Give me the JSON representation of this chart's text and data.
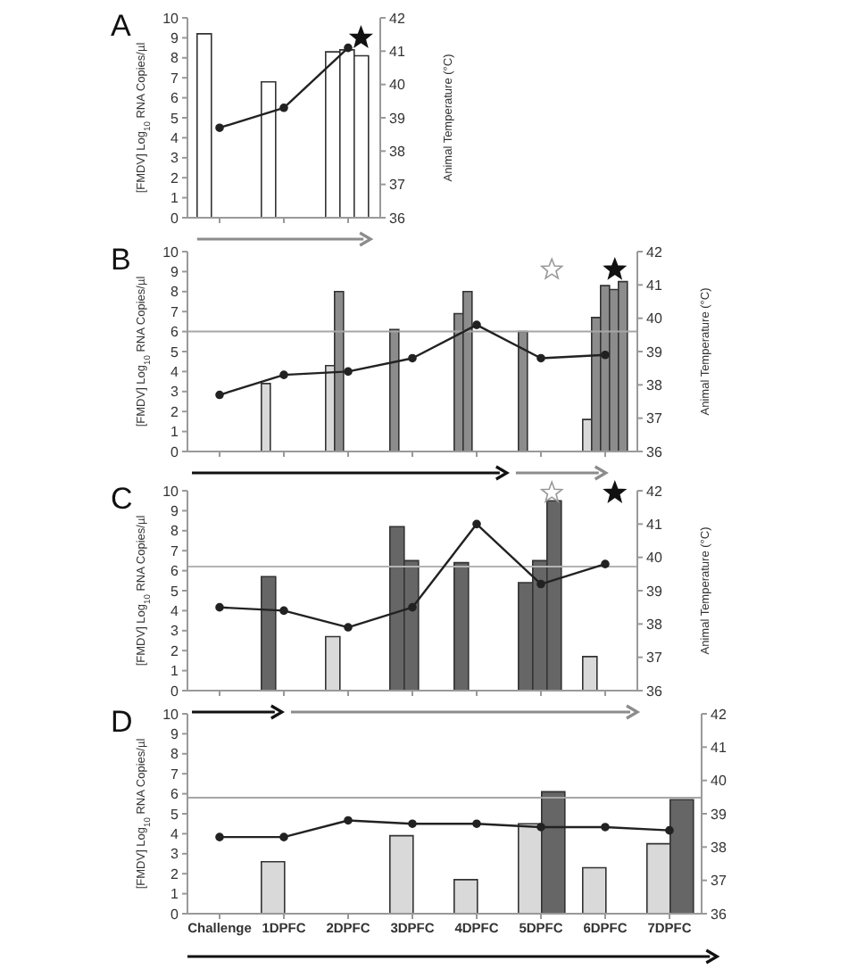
{
  "chart_data": [
    {
      "type": "bar",
      "title": "A",
      "ylabel": "[FMDV] Log$_{10}$ RNA Copies/µl",
      "y2label": "Animal Temperature (°C)",
      "categories": [
        null,
        null,
        null
      ],
      "ylim": [
        0,
        10
      ],
      "yticks": [
        0,
        1,
        2,
        3,
        4,
        5,
        6,
        7,
        8,
        9,
        10
      ],
      "y2lim": [
        36,
        42
      ],
      "y2ticks": [
        36,
        37,
        38,
        39,
        40,
        41,
        42
      ],
      "marker": "circle",
      "series": [
        {
          "color": "#ffffff",
          "values": [
            9.2,
            6.8,
            8.3
          ]
        },
        {
          "color": "#ffffff",
          "values": [
            null,
            null,
            8.4
          ]
        },
        {
          "color": "#ffffff",
          "values": [
            null,
            null,
            8.1
          ]
        },
        {
          "type": "line",
          "axis": "y2",
          "color": "#222222",
          "values": [
            38.7,
            39.3,
            41.1
          ]
        }
      ]
    },
    {
      "type": "bar",
      "title": "B",
      "ylabel": "[FMDV] Log$_{10}$ RNA Copies/µl",
      "y2label": "Animal Temperature (°C)",
      "categories": [
        null,
        null,
        null,
        null,
        null,
        null,
        null
      ],
      "ylim": [
        0,
        10
      ],
      "yticks": [
        0,
        1,
        2,
        3,
        4,
        5,
        6,
        7,
        8,
        9,
        10
      ],
      "y2lim": [
        36,
        42
      ],
      "y2ticks": [
        36,
        37,
        38,
        39,
        40,
        41,
        42
      ],
      "marker": "circle",
      "ref_lines": [
        {
          "axis": "y",
          "value": 6,
          "color": "#a6a6a6"
        }
      ],
      "series": [
        {
          "color": "#8c8c8c",
          "colors": [
            "#d9d9d9",
            "#d9d9d9",
            "#d9d9d9",
            "#8c8c8c",
            "#8c8c8c",
            "#8c8c8c",
            "#d9d9d9"
          ],
          "values": [
            null,
            3.4,
            4.3,
            6.1,
            6.9,
            6.0,
            1.6
          ]
        },
        {
          "color": "#8c8c8c",
          "values": [
            null,
            null,
            8.0,
            null,
            8.0,
            null,
            6.7
          ]
        },
        {
          "color": "#8c8c8c",
          "values": [
            null,
            null,
            null,
            null,
            null,
            null,
            8.3
          ]
        },
        {
          "color": "#8c8c8c",
          "values": [
            null,
            null,
            null,
            null,
            null,
            null,
            8.1
          ]
        },
        {
          "color": "#8c8c8c",
          "values": [
            null,
            null,
            null,
            null,
            null,
            null,
            8.5
          ]
        },
        {
          "type": "line",
          "axis": "y2",
          "color": "#222222",
          "values": [
            37.7,
            38.3,
            38.4,
            38.8,
            39.8,
            38.8,
            38.9
          ]
        }
      ]
    },
    {
      "type": "bar",
      "title": "C",
      "ylabel": "[FMDV] Log$_{10}$ RNA Copies/µl",
      "y2label": "Animal Temperature (°C)",
      "categories": [
        null,
        null,
        null,
        null,
        null,
        null,
        null
      ],
      "ylim": [
        0,
        10
      ],
      "yticks": [
        0,
        1,
        2,
        3,
        4,
        5,
        6,
        7,
        8,
        9,
        10
      ],
      "y2lim": [
        36,
        42
      ],
      "y2ticks": [
        36,
        37,
        38,
        39,
        40,
        41,
        42
      ],
      "marker": "circle",
      "ref_lines": [
        {
          "axis": "y",
          "value": 6.2,
          "color": "#b3b3b3"
        }
      ],
      "series": [
        {
          "color": "#666666",
          "colors": [
            "#666666",
            "#666666",
            "#d9d9d9",
            "#666666",
            "#666666",
            "#666666",
            "#d9d9d9"
          ],
          "values": [
            null,
            5.7,
            2.7,
            8.2,
            6.4,
            5.4,
            1.7
          ]
        },
        {
          "color": "#666666",
          "values": [
            null,
            null,
            null,
            6.5,
            null,
            6.5,
            null
          ]
        },
        {
          "color": "#666666",
          "values": [
            null,
            null,
            null,
            null,
            null,
            9.5,
            null
          ]
        },
        {
          "type": "line",
          "axis": "y2",
          "color": "#222222",
          "values": [
            38.5,
            38.4,
            37.9,
            38.5,
            41.0,
            39.2,
            39.8
          ]
        }
      ]
    },
    {
      "type": "bar",
      "title": "D",
      "ylabel": "[FMDV] Log$_{10}$ RNA Copies/µl",
      "categories": [
        "Challenge",
        "1DPFC",
        "2DPFC",
        "3DPFC",
        "4DPFC",
        "5DPFC",
        "6DPFC",
        "7DPFC"
      ],
      "ylim": [
        0,
        10
      ],
      "yticks": [
        0,
        1,
        2,
        3,
        4,
        5,
        6,
        7,
        8,
        9,
        10
      ],
      "y2lim": [
        36,
        42
      ],
      "y2ticks": [
        36,
        37,
        38,
        39,
        40,
        41,
        42
      ],
      "marker": "circle",
      "ref_lines": [
        {
          "axis": "y",
          "value": 5.8,
          "color": "#a6a6a6"
        }
      ],
      "series": [
        {
          "color": "#d9d9d9",
          "values": [
            null,
            2.6,
            null,
            3.9,
            1.7,
            4.5,
            2.3,
            3.5
          ]
        },
        {
          "color": "#666666",
          "values": [
            null,
            null,
            null,
            null,
            null,
            6.1,
            null,
            5.7
          ]
        },
        {
          "type": "line",
          "axis": "y2",
          "color": "#222222",
          "values": [
            38.3,
            38.3,
            38.8,
            38.7,
            38.7,
            38.6,
            38.6,
            38.5
          ]
        }
      ]
    }
  ]
}
